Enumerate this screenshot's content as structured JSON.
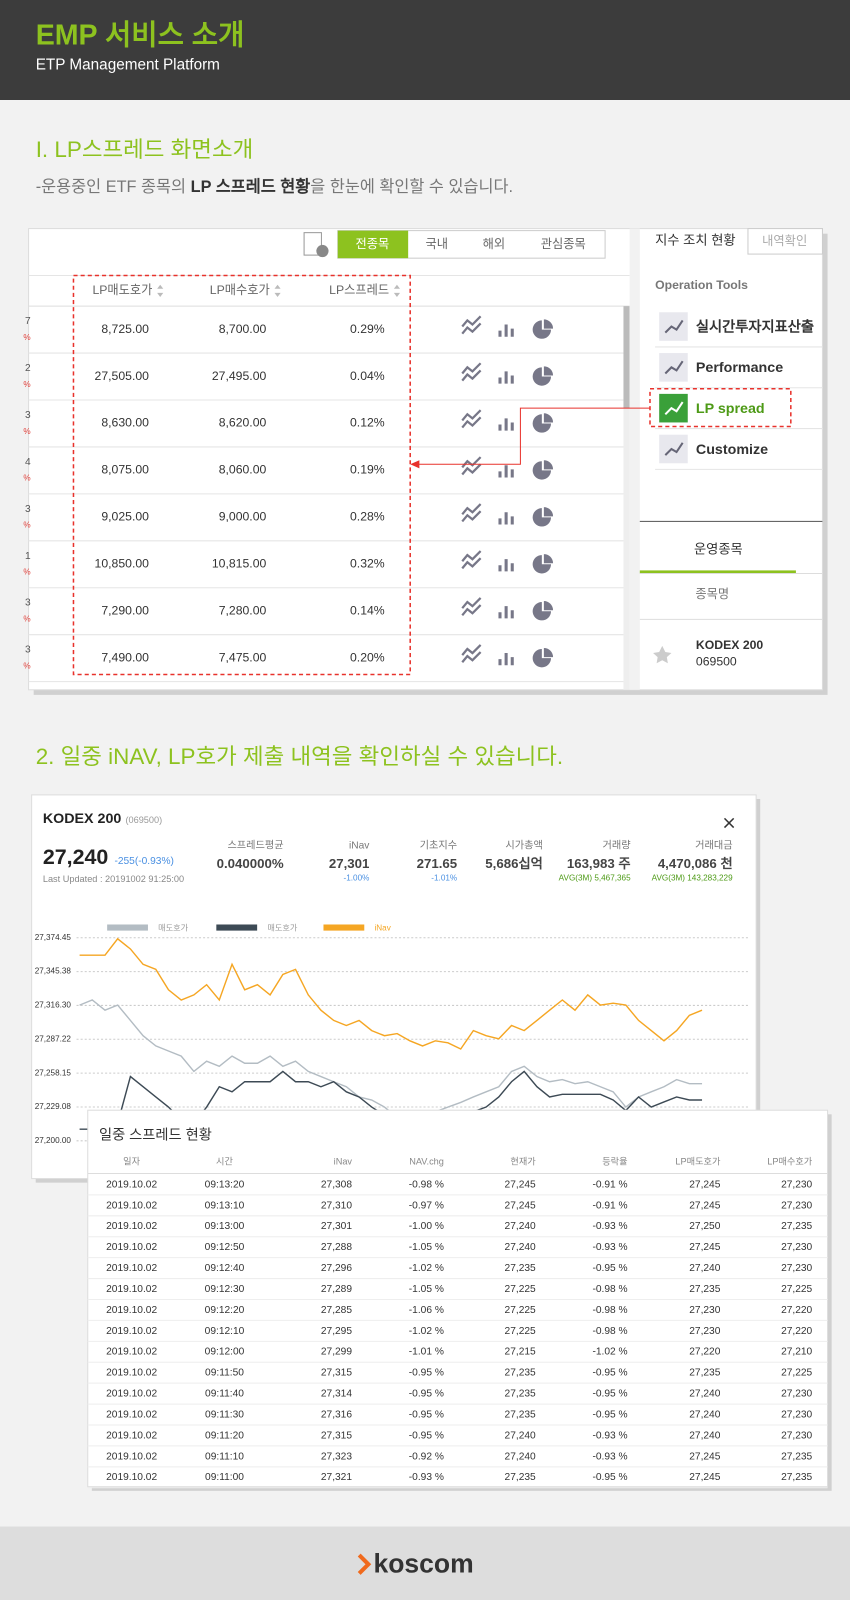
{
  "header": {
    "title": "EMP 서비스 소개",
    "subtitle": "ETP Management Platform"
  },
  "section1": {
    "heading": "I. LP스프레드 화면소개",
    "desc": [
      "-운용중인 ETF 종목의 ",
      "LP 스프레드 현황",
      "을 한눈에 확인할 수 있습니다."
    ],
    "screen": {
      "tabs": [
        "전종목",
        "국내",
        "해외",
        "관심종목"
      ],
      "columns": [
        "LP매도호가",
        "LP매수호가",
        "LP스프레드"
      ],
      "rows": [
        [
          "7",
          "%",
          "8,725.00",
          "8,700.00",
          "0.29%"
        ],
        [
          "2",
          "%",
          "27,505.00",
          "27,495.00",
          "0.04%"
        ],
        [
          "3",
          "%",
          "8,630.00",
          "8,620.00",
          "0.12%"
        ],
        [
          "4",
          "%",
          "8,075.00",
          "8,060.00",
          "0.19%"
        ],
        [
          "3",
          "%",
          "9,025.00",
          "9,000.00",
          "0.28%"
        ],
        [
          "1",
          "%",
          "10,850.00",
          "10,815.00",
          "0.32%"
        ],
        [
          "3",
          "%",
          "7,290.00",
          "7,280.00",
          "0.14%"
        ],
        [
          "3",
          "%",
          "7,490.00",
          "7,475.00",
          "0.20%"
        ]
      ],
      "side": {
        "title": "지수 조치 현황",
        "button": "내역확인",
        "tools_title": "Operation Tools",
        "tools": [
          "실시간투자지표산출",
          "Performance",
          "LP spread",
          "Customize"
        ],
        "tab": "운영종목",
        "column": "종목명",
        "item": {
          "name": "KODEX 200",
          "code": "069500"
        }
      }
    }
  },
  "section2": {
    "heading": "2. 일중 iNAV, LP호가 제출 내역을 확인하실 수 있습니다.",
    "popup": {
      "name": "KODEX 200",
      "code": "(069500)",
      "price": "27,240",
      "change": "-255(-0.93%)",
      "updated": "Last Updated : 20191002 91:25:00",
      "stats": [
        {
          "label": "스프레드평균",
          "value": "0.040000%"
        },
        {
          "label": "iNav",
          "value": "27,301",
          "sub": "-1.00%"
        },
        {
          "label": "기초지수",
          "value": "271.65",
          "sub": "-1.01%"
        },
        {
          "label": "시가총액",
          "value": "5,686십억"
        },
        {
          "label": "거래량",
          "value": "163,983 주",
          "sub": "AVG(3M) 5,467,365"
        },
        {
          "label": "거래대금",
          "value": "4,470,086 천",
          "sub": "AVG(3M) 143,283,229"
        }
      ]
    },
    "table": {
      "title": "일중 스프레드 현황",
      "columns": [
        "일자",
        "시간",
        "iNav",
        "NAV.chg",
        "현재가",
        "등락율",
        "LP매도호가",
        "LP매수호가"
      ],
      "rows": [
        [
          "2019.10.02",
          "09:13:20",
          "27,308",
          "-0.98 %",
          "27,245",
          "-0.91 %",
          "27,245",
          "27,230"
        ],
        [
          "2019.10.02",
          "09:13:10",
          "27,310",
          "-0.97 %",
          "27,245",
          "-0.91 %",
          "27,245",
          "27,230"
        ],
        [
          "2019.10.02",
          "09:13:00",
          "27,301",
          "-1.00 %",
          "27,240",
          "-0.93 %",
          "27,250",
          "27,235"
        ],
        [
          "2019.10.02",
          "09:12:50",
          "27,288",
          "-1.05 %",
          "27,240",
          "-0.93 %",
          "27,245",
          "27,230"
        ],
        [
          "2019.10.02",
          "09:12:40",
          "27,296",
          "-1.02 %",
          "27,235",
          "-0.95 %",
          "27,240",
          "27,230"
        ],
        [
          "2019.10.02",
          "09:12:30",
          "27,289",
          "-1.05 %",
          "27,225",
          "-0.98 %",
          "27,235",
          "27,225"
        ],
        [
          "2019.10.02",
          "09:12:20",
          "27,285",
          "-1.06 %",
          "27,225",
          "-0.98 %",
          "27,230",
          "27,220"
        ],
        [
          "2019.10.02",
          "09:12:10",
          "27,295",
          "-1.02 %",
          "27,225",
          "-0.98 %",
          "27,230",
          "27,220"
        ],
        [
          "2019.10.02",
          "09:12:00",
          "27,299",
          "-1.01 %",
          "27,215",
          "-1.02 %",
          "27,220",
          "27,210"
        ],
        [
          "2019.10.02",
          "09:11:50",
          "27,315",
          "-0.95 %",
          "27,235",
          "-0.95 %",
          "27,235",
          "27,225"
        ],
        [
          "2019.10.02",
          "09:11:40",
          "27,314",
          "-0.95 %",
          "27,235",
          "-0.95 %",
          "27,240",
          "27,230"
        ],
        [
          "2019.10.02",
          "09:11:30",
          "27,316",
          "-0.95 %",
          "27,235",
          "-0.95 %",
          "27,240",
          "27,230"
        ],
        [
          "2019.10.02",
          "09:11:20",
          "27,315",
          "-0.95 %",
          "27,240",
          "-0.93 %",
          "27,240",
          "27,230"
        ],
        [
          "2019.10.02",
          "09:11:10",
          "27,323",
          "-0.92 %",
          "27,240",
          "-0.93 %",
          "27,245",
          "27,235"
        ],
        [
          "2019.10.02",
          "09:11:00",
          "27,321",
          "-0.93 %",
          "27,235",
          "-0.95 %",
          "27,245",
          "27,235"
        ]
      ]
    }
  },
  "chart_data": {
    "type": "line",
    "ylim": [
      27200,
      27374.45
    ],
    "yticks": [
      {
        "value": 27200,
        "label": "27,200.00"
      },
      {
        "value": 27229.08,
        "label": "27,229.08"
      },
      {
        "value": 27258.15,
        "label": "27,258.15"
      },
      {
        "value": 27287.22,
        "label": "27,287.22"
      },
      {
        "value": 27316.3,
        "label": "27,316.30"
      },
      {
        "value": 27345.38,
        "label": "27,345.38"
      },
      {
        "value": 27374.45,
        "label": "27,374.45"
      }
    ],
    "grid": true,
    "series": [
      {
        "name": "매도호가",
        "color": "#b3bcc3",
        "values": [
          27316.6,
          27321,
          27312.2,
          27316.6,
          27303.4,
          27290.3,
          27281.5,
          27277.1,
          27272.8,
          27259.6,
          27268.4,
          27264,
          27272.8,
          27266.6,
          27266.6,
          27272.8,
          27264,
          27268.4,
          27259.6,
          27255.2,
          27250.8,
          27246.5,
          27237.7,
          27235.1,
          27229,
          27220.2,
          27215,
          27220.2,
          27225,
          27229,
          27233,
          27237.7,
          27242.1,
          27246.5,
          27259.6,
          27264,
          27255.2,
          27250.8,
          27252.6,
          27249.1,
          27250.8,
          27246.5,
          27242.1,
          27229,
          27237.7,
          27242.1,
          27246.5,
          27252.6,
          27249.1,
          27249.1
        ]
      },
      {
        "name": "매도호가",
        "color": "#3d4a55",
        "values": [
          27210,
          27210,
          27212,
          27215,
          27255.2,
          27246.5,
          27237.7,
          27229,
          27218,
          27215,
          27229,
          27246.5,
          27242.1,
          27250.8,
          27250.8,
          27250.8,
          27259.6,
          27250.8,
          27250.8,
          27246.5,
          27250.8,
          27242.1,
          27237.7,
          27229,
          27222,
          27215,
          27210,
          27208,
          27212,
          27215,
          27220,
          27225,
          27229,
          27237.7,
          27250.8,
          27259.6,
          27246.5,
          27237.7,
          27240,
          27240,
          27240,
          27240,
          27235.1,
          27226,
          27237.7,
          27229,
          27233.4,
          27237.7,
          27235.1,
          27235.1
        ]
      },
      {
        "name": "iNav",
        "color": "#f5a623",
        "values": [
          27359.5,
          27359.5,
          27359.5,
          27373.6,
          27364.8,
          27351.7,
          27347.3,
          27329.7,
          27321,
          27325.4,
          27334.1,
          27321,
          27351.7,
          27329.7,
          27334.1,
          27325.4,
          27342.9,
          27347.3,
          27325.4,
          27312.2,
          27303.4,
          27299.1,
          27303.4,
          27294.7,
          27290.3,
          27292.1,
          27285.9,
          27281.5,
          27285.9,
          27284.2,
          27278.9,
          27294.7,
          27290.3,
          27287.7,
          27299.1,
          27294.7,
          27303.4,
          27312.2,
          27321,
          27312.2,
          27325.4,
          27316.6,
          27318.3,
          27316.6,
          27303.4,
          27294.7,
          27285.9,
          27294.7,
          27307.8,
          27312.2
        ]
      }
    ]
  },
  "footer": {
    "logo": "koscom"
  }
}
